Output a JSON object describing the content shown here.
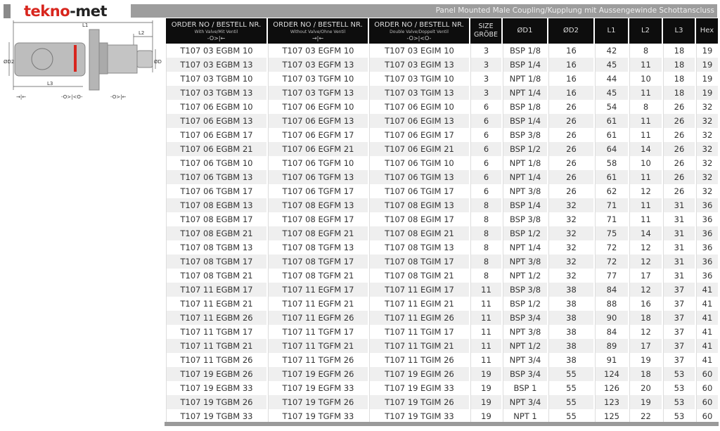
{
  "brand": {
    "logo_part1": "tekno",
    "logo_part2": "-met",
    "accent": "#d8261e"
  },
  "title": "Panel Mounted Male Coupling/Kupplung mit Aussengewinde Schottanscluss",
  "drawing": {
    "labels": [
      "L1",
      "L2",
      "L3",
      "ØD2",
      "ØD1"
    ],
    "symbols": [
      "→|←",
      "-O>|<O-",
      "-O>|←"
    ]
  },
  "table": {
    "headers": [
      {
        "label": "ORDER NO / BESTELL NR.",
        "sub": "With Valve/Mit Ventil",
        "sym": "-O>|←"
      },
      {
        "label": "ORDER NO / BESTELL NR.",
        "sub": "Without Valve/Ohne Ventil",
        "sym": "→|←"
      },
      {
        "label": "ORDER NO / BESTELL NR.",
        "sub": "Double Valve/Doppelt Ventil",
        "sym": "-O>|<O-"
      },
      {
        "label": "SIZE GRÖBE"
      },
      {
        "label": "ØD1"
      },
      {
        "label": "ØD2"
      },
      {
        "label": "L1"
      },
      {
        "label": "L2"
      },
      {
        "label": "L3"
      },
      {
        "label": "Hex"
      }
    ],
    "rows": [
      [
        "T107 03 EGBM 10",
        "T107 03 EGFM 10",
        "T107 03 EGIM 10",
        "3",
        "BSP 1/8",
        "16",
        "42",
        "8",
        "18",
        "19"
      ],
      [
        "T107 03 EGBM 13",
        "T107 03 EGFM 13",
        "T107 03 EGIM 13",
        "3",
        "BSP 1/4",
        "16",
        "45",
        "11",
        "18",
        "19"
      ],
      [
        "T107 03 TGBM 10",
        "T107 03 TGFM 10",
        "T107 03 TGIM 10",
        "3",
        "NPT 1/8",
        "16",
        "44",
        "10",
        "18",
        "19"
      ],
      [
        "T107 03 TGBM 13",
        "T107 03 TGFM 13",
        "T107 03 TGIM 13",
        "3",
        "NPT 1/4",
        "16",
        "45",
        "11",
        "18",
        "19"
      ],
      [
        "T107 06 EGBM 10",
        "T107 06 EGFM 10",
        "T107 06 EGIM 10",
        "6",
        "BSP 1/8",
        "26",
        "54",
        "8",
        "26",
        "32"
      ],
      [
        "T107 06 EGBM 13",
        "T107 06 EGFM 13",
        "T107 06 EGIM 13",
        "6",
        "BSP 1/4",
        "26",
        "61",
        "11",
        "26",
        "32"
      ],
      [
        "T107 06 EGBM 17",
        "T107 06 EGFM 17",
        "T107 06 EGIM 17",
        "6",
        "BSP 3/8",
        "26",
        "61",
        "11",
        "26",
        "32"
      ],
      [
        "T107 06 EGBM 21",
        "T107 06 EGFM 21",
        "T107 06 EGIM 21",
        "6",
        "BSP 1/2",
        "26",
        "64",
        "14",
        "26",
        "32"
      ],
      [
        "T107 06 TGBM 10",
        "T107 06 TGFM 10",
        "T107 06 TGIM 10",
        "6",
        "NPT 1/8",
        "26",
        "58",
        "10",
        "26",
        "32"
      ],
      [
        "T107 06 TGBM 13",
        "T107 06 TGFM 13",
        "T107 06 TGIM 13",
        "6",
        "NPT 1/4",
        "26",
        "61",
        "11",
        "26",
        "32"
      ],
      [
        "T107 06 TGBM 17",
        "T107 06 TGFM 17",
        "T107 06 TGIM 17",
        "6",
        "NPT 3/8",
        "26",
        "62",
        "12",
        "26",
        "32"
      ],
      [
        "T107 08 EGBM 13",
        "T107 08 EGFM 13",
        "T107 08 EGIM 13",
        "8",
        "BSP 1/4",
        "32",
        "71",
        "11",
        "31",
        "36"
      ],
      [
        "T107 08 EGBM 17",
        "T107 08 EGFM 17",
        "T107 08 EGIM 17",
        "8",
        "BSP 3/8",
        "32",
        "71",
        "11",
        "31",
        "36"
      ],
      [
        "T107 08 EGBM 21",
        "T107 08 EGFM 21",
        "T107 08 EGIM 21",
        "8",
        "BSP 1/2",
        "32",
        "75",
        "14",
        "31",
        "36"
      ],
      [
        "T107 08 TGBM 13",
        "T107 08 TGFM 13",
        "T107 08 TGIM 13",
        "8",
        "NPT 1/4",
        "32",
        "72",
        "12",
        "31",
        "36"
      ],
      [
        "T107 08 TGBM 17",
        "T107 08 TGFM 17",
        "T107 08 TGIM 17",
        "8",
        "NPT 3/8",
        "32",
        "72",
        "12",
        "31",
        "36"
      ],
      [
        "T107 08 TGBM 21",
        "T107 08 TGFM 21",
        "T107 08 TGIM 21",
        "8",
        "NPT 1/2",
        "32",
        "77",
        "17",
        "31",
        "36"
      ],
      [
        "T107 11 EGBM 17",
        "T107 11 EGFM 17",
        "T107 11 EGIM 17",
        "11",
        "BSP 3/8",
        "38",
        "84",
        "12",
        "37",
        "41"
      ],
      [
        "T107 11 EGBM 21",
        "T107 11 EGFM 21",
        "T107 11 EGIM 21",
        "11",
        "BSP 1/2",
        "38",
        "88",
        "16",
        "37",
        "41"
      ],
      [
        "T107 11 EGBM 26",
        "T107 11 EGFM 26",
        "T107 11 EGIM 26",
        "11",
        "BSP 3/4",
        "38",
        "90",
        "18",
        "37",
        "41"
      ],
      [
        "T107 11 TGBM 17",
        "T107 11 TGFM 17",
        "T107 11 TGIM 17",
        "11",
        "NPT 3/8",
        "38",
        "84",
        "12",
        "37",
        "41"
      ],
      [
        "T107 11 TGBM 21",
        "T107 11 TGFM 21",
        "T107 11 TGIM 21",
        "11",
        "NPT 1/2",
        "38",
        "89",
        "17",
        "37",
        "41"
      ],
      [
        "T107 11 TGBM 26",
        "T107 11 TGFM 26",
        "T107 11 TGIM 26",
        "11",
        "NPT 3/4",
        "38",
        "91",
        "19",
        "37",
        "41"
      ],
      [
        "T107 19 EGBM 26",
        "T107 19 EGFM 26",
        "T107 19 EGIM 26",
        "19",
        "BSP 3/4",
        "55",
        "124",
        "18",
        "53",
        "60"
      ],
      [
        "T107 19 EGBM 33",
        "T107 19 EGFM 33",
        "T107 19 EGIM 33",
        "19",
        "BSP 1",
        "55",
        "126",
        "20",
        "53",
        "60"
      ],
      [
        "T107 19 TGBM 26",
        "T107 19 TGFM 26",
        "T107 19 TGIM 26",
        "19",
        "NPT 3/4",
        "55",
        "123",
        "19",
        "53",
        "60"
      ],
      [
        "T107 19 TGBM 33",
        "T107 19 TGFM 33",
        "T107 19 TGIM 33",
        "19",
        "NPT 1",
        "55",
        "125",
        "22",
        "53",
        "60"
      ]
    ]
  }
}
